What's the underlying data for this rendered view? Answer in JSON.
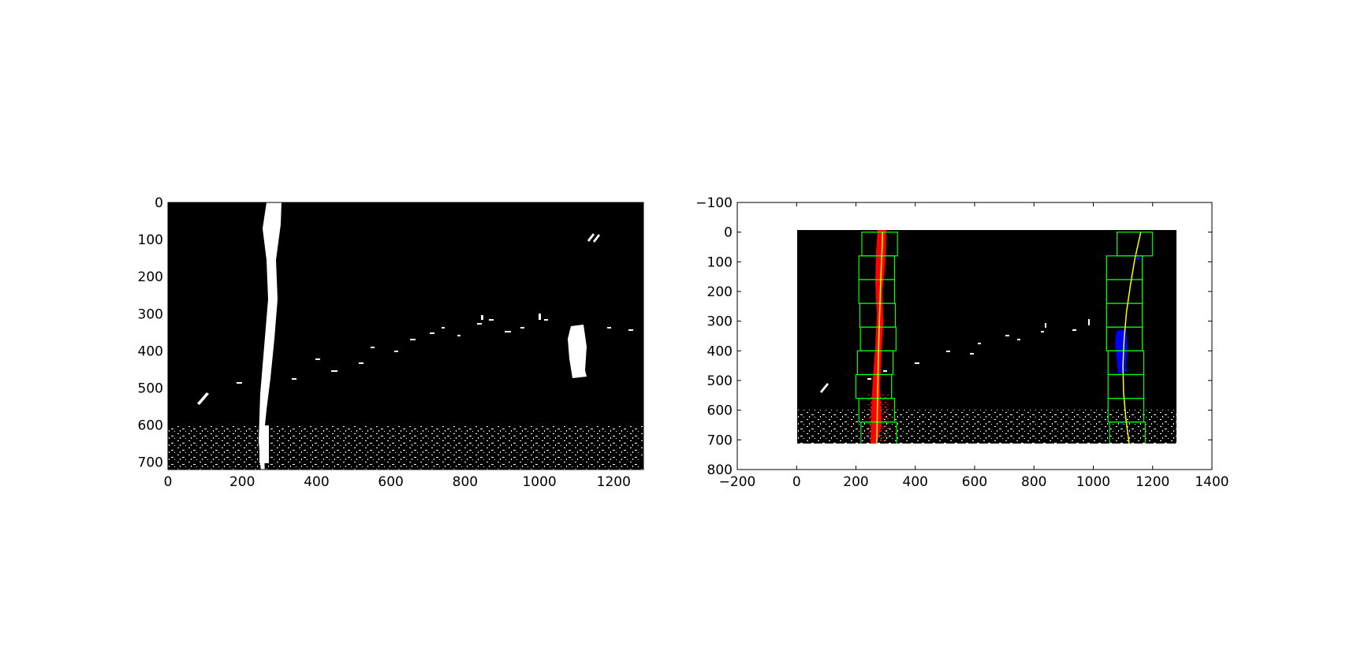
{
  "chart_data": [
    {
      "type": "image",
      "description_panel": "left",
      "xlim": [
        0,
        1280
      ],
      "ylim": [
        720,
        0
      ],
      "xticks": [
        0,
        200,
        400,
        600,
        800,
        1000,
        1200
      ],
      "yticks": [
        0,
        100,
        200,
        300,
        400,
        500,
        600,
        700
      ],
      "xtick_labels": [
        "0",
        "200",
        "400",
        "600",
        "800",
        "1000",
        "1200"
      ],
      "ytick_labels": [
        "0",
        "100",
        "200",
        "300",
        "400",
        "500",
        "600",
        "700"
      ],
      "image_extent": [
        0,
        1280,
        720,
        0
      ],
      "colors": {
        "background": "#000000",
        "pixels": "#ffffff"
      }
    },
    {
      "type": "image",
      "description_panel": "right",
      "xlim": [
        -200,
        1400
      ],
      "ylim": [
        800,
        -100
      ],
      "xticks": [
        -200,
        0,
        200,
        400,
        600,
        800,
        1000,
        1200,
        1400
      ],
      "yticks": [
        -100,
        0,
        100,
        200,
        300,
        400,
        500,
        600,
        700,
        800
      ],
      "xtick_labels": [
        "−200",
        "0",
        "200",
        "400",
        "600",
        "800",
        "1000",
        "1200",
        "1400"
      ],
      "ytick_labels": [
        "−100",
        "0",
        "100",
        "200",
        "300",
        "400",
        "500",
        "600",
        "700",
        "800"
      ],
      "image_extent": [
        0,
        1280,
        720,
        0
      ],
      "colors": {
        "background": "#000000",
        "pixels": "#ffffff",
        "left_lane": "#ff0000",
        "right_lane": "#0000ff",
        "windows": "#00ff00",
        "fit_line": "#ffff00"
      },
      "left_windows": [
        {
          "x0": 217,
          "x1": 337,
          "y0": 640,
          "y1": 720
        },
        {
          "x0": 210,
          "x1": 330,
          "y0": 560,
          "y1": 640
        },
        {
          "x0": 200,
          "x1": 320,
          "y0": 480,
          "y1": 560
        },
        {
          "x0": 205,
          "x1": 325,
          "y0": 400,
          "y1": 480
        },
        {
          "x0": 215,
          "x1": 335,
          "y0": 320,
          "y1": 400
        },
        {
          "x0": 213,
          "x1": 333,
          "y0": 240,
          "y1": 320
        },
        {
          "x0": 210,
          "x1": 330,
          "y0": 160,
          "y1": 240
        },
        {
          "x0": 210,
          "x1": 330,
          "y0": 80,
          "y1": 160
        },
        {
          "x0": 220,
          "x1": 340,
          "y0": 0,
          "y1": 80
        }
      ],
      "right_windows": [
        {
          "x0": 1055,
          "x1": 1175,
          "y0": 640,
          "y1": 720
        },
        {
          "x0": 1050,
          "x1": 1170,
          "y0": 560,
          "y1": 640
        },
        {
          "x0": 1050,
          "x1": 1170,
          "y0": 480,
          "y1": 560
        },
        {
          "x0": 1050,
          "x1": 1170,
          "y0": 400,
          "y1": 480
        },
        {
          "x0": 1045,
          "x1": 1165,
          "y0": 320,
          "y1": 400
        },
        {
          "x0": 1045,
          "x1": 1165,
          "y0": 240,
          "y1": 320
        },
        {
          "x0": 1045,
          "x1": 1165,
          "y0": 160,
          "y1": 240
        },
        {
          "x0": 1045,
          "x1": 1165,
          "y0": 80,
          "y1": 160
        },
        {
          "x0": 1080,
          "x1": 1200,
          "y0": 0,
          "y1": 80
        }
      ],
      "left_fit": [
        [
          0,
          290
        ],
        [
          180,
          283
        ],
        [
          360,
          277
        ],
        [
          540,
          273
        ],
        [
          720,
          270
        ]
      ],
      "right_fit": [
        [
          0,
          1160
        ],
        [
          90,
          1140
        ],
        [
          180,
          1125
        ],
        [
          270,
          1112
        ],
        [
          360,
          1104
        ],
        [
          450,
          1100
        ],
        [
          540,
          1102
        ],
        [
          630,
          1110
        ],
        [
          720,
          1122
        ]
      ]
    }
  ]
}
